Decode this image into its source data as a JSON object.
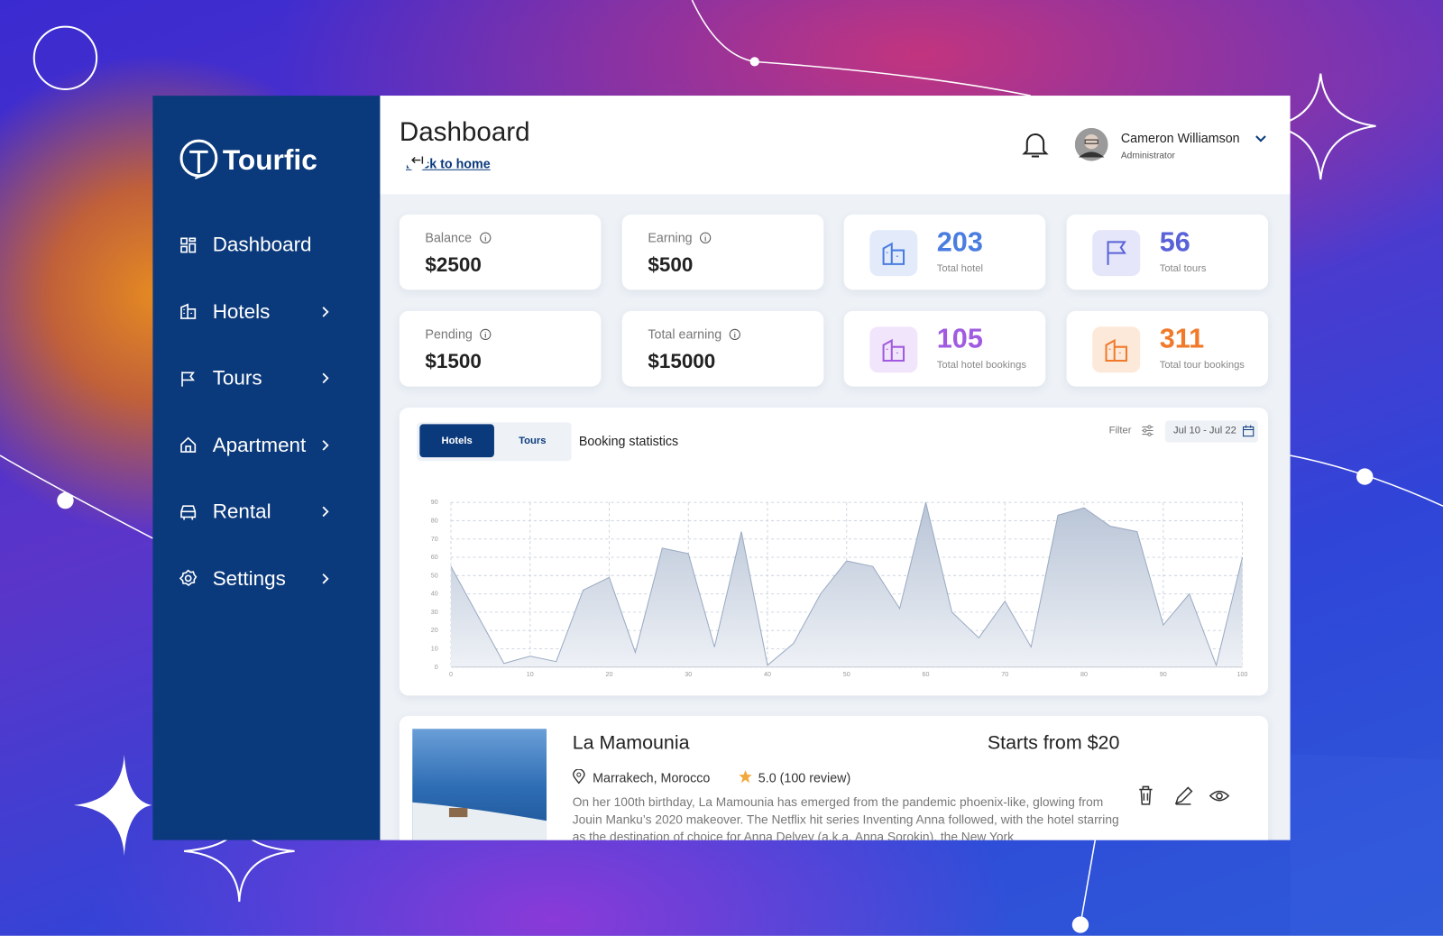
{
  "brand": "Tourfic",
  "nav": [
    "Dashboard",
    "Hotels",
    "Tours",
    "Apartment",
    "Rental",
    "Settings"
  ],
  "header": {
    "title": "Dashboard",
    "back_link": "Back to home",
    "user_name": "Cameron Williamson",
    "user_role": "Administrator"
  },
  "balance_cards": [
    {
      "label": "Balance",
      "value": "$2500"
    },
    {
      "label": "Earning",
      "value": "$500"
    },
    {
      "label": "Pending",
      "value": "$1500"
    },
    {
      "label": "Total earning",
      "value": "$15000"
    }
  ],
  "stat_cards": [
    {
      "value": "203",
      "label": "Total hotel"
    },
    {
      "value": "56",
      "label": "Total tours"
    },
    {
      "value": "105",
      "label": "Total hotel bookings"
    },
    {
      "value": "311",
      "label": "Total tour bookings"
    }
  ],
  "booking_chart": {
    "tabs": [
      "Hotels",
      "Tours"
    ],
    "title": "Booking statistics",
    "filter": "Filter",
    "date_range": "Jul 10 - Jul 22",
    "x": [
      0,
      6.7,
      10,
      13.3,
      16.7,
      20,
      23.3,
      26.7,
      30,
      33.3,
      36.7,
      40,
      43.3,
      46.7,
      50,
      53.3,
      56.7,
      60,
      63.3,
      66.7,
      70,
      73.3,
      76.7,
      80,
      83.3,
      86.7,
      90,
      93.3,
      96.7,
      100
    ],
    "values": [
      55,
      2,
      6,
      3,
      42,
      49,
      8,
      65,
      62,
      11,
      74,
      1,
      13,
      40,
      58,
      55,
      32,
      90,
      30,
      16,
      36,
      11,
      83,
      87,
      77,
      74,
      23,
      40,
      1,
      60
    ],
    "xlim": [
      0,
      100
    ],
    "ylim": [
      0,
      90
    ],
    "xticks": [
      0,
      10,
      20,
      30,
      40,
      50,
      60,
      70,
      80,
      90,
      100
    ],
    "yticks": [
      0,
      10,
      20,
      30,
      40,
      50,
      60,
      70,
      80,
      90
    ],
    "grid": true
  },
  "listing": {
    "name": "La Mamounia",
    "price": "Starts from $20",
    "location": "Marrakech, Morocco",
    "rating": "5.0 (100 review)",
    "description": "On her 100th birthday, La Mamounia has emerged from the pandemic phoenix-like, glowing from Jouin Manku’s 2020 makeover. The Netflix hit series Inventing Anna followed, with the hotel starring as the destination of choice for Anna Delvey (a.k.a. Anna Sorokin), the New York"
  }
}
